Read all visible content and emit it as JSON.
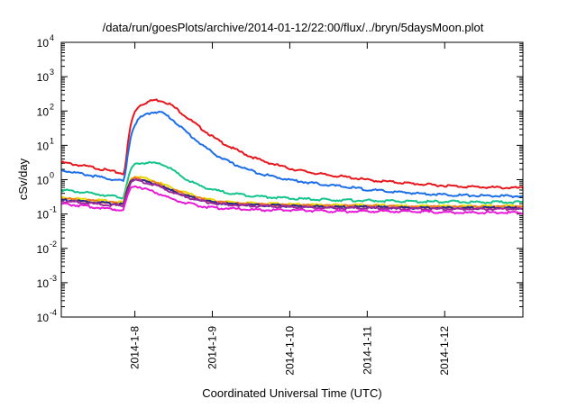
{
  "chart_data": {
    "type": "line",
    "title": "/data/run/goesPlots/archive/2014-01-12/22:00/flux/../bryn/5daysMoon.plot",
    "xlabel": "Coordinated Universal Time (UTC)",
    "ylabel": "cSv/day",
    "yscale": "log",
    "ylim": [
      0.0001,
      10000
    ],
    "xlim": [
      0.0,
      5.96
    ],
    "x_unit": "days since 2014-1-7 00:00 UTC",
    "grid": false,
    "legend": "none",
    "x_ticks": [
      {
        "x": 0.95,
        "label": "2014-1-8"
      },
      {
        "x": 1.95,
        "label": "2014-1-9"
      },
      {
        "x": 2.95,
        "label": "2014-1-10"
      },
      {
        "x": 3.95,
        "label": "2014-1-11"
      },
      {
        "x": 4.95,
        "label": "2014-1-12"
      }
    ],
    "y_ticks": [
      {
        "exp": -4,
        "label": "-4"
      },
      {
        "exp": -3,
        "label": "-3"
      },
      {
        "exp": -2,
        "label": "-2"
      },
      {
        "exp": -1,
        "label": "-1"
      },
      {
        "exp": 0,
        "label": "0"
      },
      {
        "exp": 1,
        "label": "1"
      },
      {
        "exp": 2,
        "label": "2"
      },
      {
        "exp": 3,
        "label": "3"
      },
      {
        "exp": 4,
        "label": "4"
      }
    ],
    "y_tick_base": "10",
    "series": [
      {
        "color": "#e8171d",
        "x": [
          0.0,
          0.4,
          0.8,
          0.83,
          0.86,
          0.9,
          0.95,
          1.0,
          1.1,
          1.2,
          1.3,
          1.4,
          1.5,
          1.6,
          1.8,
          2.0,
          2.2,
          2.4,
          2.6,
          2.8,
          3.0,
          3.2,
          3.4,
          3.6,
          3.8,
          4.0,
          4.3,
          4.6,
          4.9,
          5.2,
          5.5,
          5.8,
          5.96
        ],
        "y": [
          3.2,
          2.3,
          1.5,
          2.5,
          12,
          45,
          95,
          140,
          180,
          210,
          200,
          160,
          110,
          72,
          32,
          15,
          8.5,
          5.2,
          3.5,
          2.6,
          2.0,
          1.65,
          1.4,
          1.25,
          1.1,
          0.95,
          0.85,
          0.75,
          0.68,
          0.63,
          0.6,
          0.58,
          0.57
        ]
      },
      {
        "color": "#1c6ee8",
        "x": [
          0.0,
          0.4,
          0.8,
          0.83,
          0.86,
          0.9,
          0.95,
          1.0,
          1.1,
          1.2,
          1.3,
          1.4,
          1.5,
          1.6,
          1.8,
          2.0,
          2.2,
          2.4,
          2.6,
          2.8,
          3.0,
          3.2,
          3.4,
          3.6,
          3.8,
          4.0,
          4.3,
          4.6,
          4.9,
          5.2,
          5.5,
          5.8,
          5.96
        ],
        "y": [
          1.9,
          1.3,
          0.9,
          1.5,
          6,
          20,
          40,
          60,
          80,
          95,
          90,
          65,
          42,
          26,
          11,
          5.2,
          3.0,
          2.0,
          1.45,
          1.15,
          0.95,
          0.82,
          0.72,
          0.64,
          0.57,
          0.5,
          0.44,
          0.4,
          0.37,
          0.35,
          0.34,
          0.33,
          0.33
        ]
      },
      {
        "color": "#12c48b",
        "x": [
          0.0,
          0.4,
          0.8,
          0.86,
          0.9,
          0.95,
          1.0,
          1.1,
          1.2,
          1.3,
          1.4,
          1.5,
          1.6,
          1.8,
          2.0,
          2.2,
          2.4,
          2.6,
          2.8,
          3.0,
          3.4,
          3.8,
          4.2,
          4.6,
          5.0,
          5.4,
          5.8,
          5.96
        ],
        "y": [
          0.5,
          0.4,
          0.3,
          1.0,
          2.0,
          2.8,
          3.0,
          3.1,
          3.0,
          2.8,
          2.2,
          1.5,
          1.05,
          0.65,
          0.48,
          0.4,
          0.35,
          0.32,
          0.3,
          0.28,
          0.26,
          0.25,
          0.24,
          0.23,
          0.23,
          0.22,
          0.22,
          0.22
        ]
      },
      {
        "color": "#e8d800",
        "x": [
          0.0,
          0.4,
          0.8,
          0.86,
          0.9,
          0.95,
          1.0,
          1.1,
          1.2,
          1.3,
          1.4,
          1.6,
          1.8,
          2.0,
          2.3,
          2.6,
          3.0,
          3.5,
          4.0,
          4.5,
          5.0,
          5.5,
          5.96
        ],
        "y": [
          0.3,
          0.26,
          0.22,
          0.7,
          1.1,
          1.25,
          1.2,
          1.05,
          0.9,
          0.75,
          0.6,
          0.42,
          0.3,
          0.24,
          0.21,
          0.2,
          0.19,
          0.18,
          0.18,
          0.17,
          0.17,
          0.17,
          0.17
        ]
      },
      {
        "color": "#f07a24",
        "x": [
          0.0,
          0.4,
          0.8,
          0.86,
          0.9,
          0.95,
          1.0,
          1.1,
          1.2,
          1.3,
          1.4,
          1.6,
          1.8,
          2.0,
          2.3,
          2.6,
          3.0,
          3.5,
          4.0,
          4.5,
          5.0,
          5.5,
          5.96
        ],
        "y": [
          0.28,
          0.24,
          0.2,
          0.62,
          1.0,
          1.12,
          1.08,
          0.95,
          0.82,
          0.68,
          0.55,
          0.38,
          0.28,
          0.22,
          0.2,
          0.19,
          0.18,
          0.17,
          0.17,
          0.16,
          0.16,
          0.16,
          0.16
        ]
      },
      {
        "color": "#2a2a8c",
        "x": [
          0.0,
          0.4,
          0.8,
          0.86,
          0.9,
          0.95,
          1.0,
          1.1,
          1.2,
          1.3,
          1.4,
          1.6,
          1.8,
          2.0,
          2.3,
          2.6,
          3.0,
          3.5,
          4.0,
          4.5,
          5.0,
          5.5,
          5.96
        ],
        "y": [
          0.26,
          0.22,
          0.19,
          0.58,
          0.92,
          1.05,
          1.0,
          0.88,
          0.76,
          0.63,
          0.5,
          0.35,
          0.26,
          0.21,
          0.19,
          0.18,
          0.17,
          0.16,
          0.16,
          0.15,
          0.15,
          0.15,
          0.15
        ]
      },
      {
        "color": "#9c2a9c",
        "x": [
          0.0,
          0.4,
          0.8,
          0.86,
          0.9,
          0.95,
          1.0,
          1.1,
          1.2,
          1.3,
          1.4,
          1.6,
          1.8,
          2.0,
          2.3,
          2.6,
          3.0,
          3.5,
          4.0,
          4.5,
          5.0,
          5.5,
          5.96
        ],
        "y": [
          0.24,
          0.2,
          0.17,
          0.52,
          0.85,
          0.95,
          0.92,
          0.8,
          0.7,
          0.58,
          0.46,
          0.32,
          0.24,
          0.2,
          0.18,
          0.17,
          0.16,
          0.15,
          0.15,
          0.14,
          0.14,
          0.14,
          0.14
        ]
      },
      {
        "color": "#e81ad8",
        "x": [
          0.0,
          0.4,
          0.8,
          0.86,
          0.9,
          0.95,
          1.0,
          1.1,
          1.2,
          1.3,
          1.4,
          1.6,
          1.8,
          2.0,
          2.3,
          2.6,
          3.0,
          3.5,
          4.0,
          4.5,
          5.0,
          5.5,
          5.96
        ],
        "y": [
          0.2,
          0.16,
          0.13,
          0.38,
          0.58,
          0.65,
          0.62,
          0.52,
          0.44,
          0.36,
          0.29,
          0.21,
          0.17,
          0.15,
          0.14,
          0.13,
          0.13,
          0.12,
          0.12,
          0.12,
          0.11,
          0.11,
          0.11
        ]
      }
    ]
  }
}
